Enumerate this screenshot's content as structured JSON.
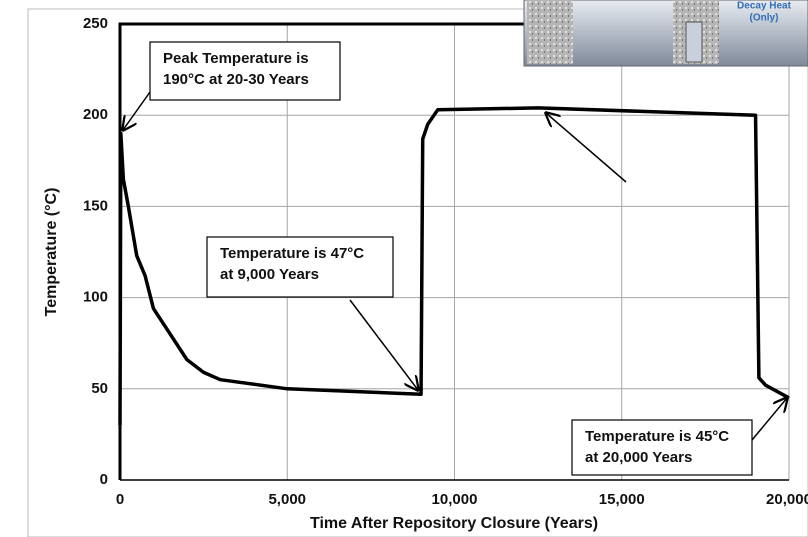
{
  "chart_data": {
    "type": "line",
    "x_label": "Time After Repository  Closure (Years)",
    "y_label": "Temperature (°C)",
    "x": [
      0,
      25,
      100,
      250,
      500,
      750,
      1000,
      1500,
      2000,
      2500,
      3000,
      5000,
      9000,
      9050,
      9200,
      9500,
      12500,
      19000,
      19100,
      19300,
      20000
    ],
    "values": [
      30,
      190,
      165,
      150,
      123,
      112,
      94,
      80,
      66,
      59,
      55,
      50,
      47,
      187,
      195,
      203,
      204,
      200,
      56,
      52,
      45
    ],
    "color": "#000000",
    "xlim": [
      0,
      20000
    ],
    "xticks": [
      0,
      {
        "value": 5000,
        "label": "5,000"
      },
      {
        "value": 10000,
        "label": "10,000"
      },
      {
        "value": 15000,
        "label": "15,000"
      },
      {
        "value": 20000,
        "label": "20,000"
      }
    ],
    "ylim": [
      0,
      250
    ],
    "yticks": [
      0,
      50,
      100,
      150,
      200,
      250
    ],
    "grid": true,
    "annotations": [
      {
        "text": [
          "Peak Temperature is",
          "190°C at 20-30 Years"
        ]
      },
      {
        "text": [
          "Temperature is 47°C",
          "at 9,000 Years"
        ]
      },
      {
        "text": [
          "Temperature is 45°C",
          "at 20,000 Years"
        ]
      }
    ],
    "inset": {
      "text": [
        "Decay Heat",
        "(Only)"
      ]
    }
  }
}
